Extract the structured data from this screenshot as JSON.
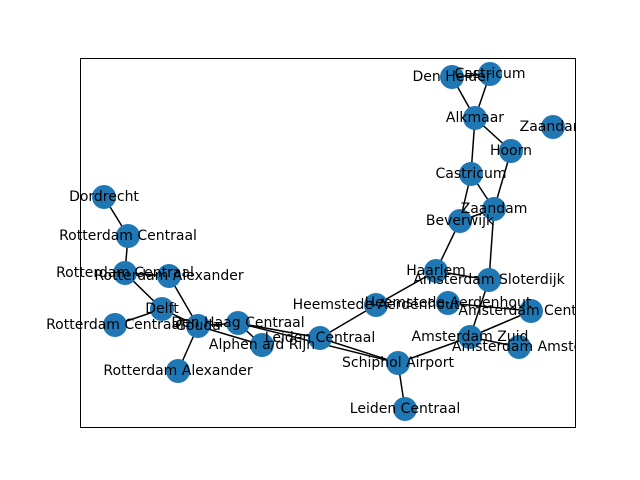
{
  "colors": {
    "node": "#1f77b4",
    "edge": "#000000",
    "background": "#ffffff"
  },
  "nodes": [
    {
      "id": "n0",
      "label": "Den Helder"
    },
    {
      "id": "n1",
      "label": "Castricum"
    },
    {
      "id": "n2",
      "label": "Alkmaar"
    },
    {
      "id": "n3",
      "label": "Zaandam"
    },
    {
      "id": "n4",
      "label": "Hoorn"
    },
    {
      "id": "n5",
      "label": "Castricum"
    },
    {
      "id": "n6",
      "label": "Zaandam"
    },
    {
      "id": "n7",
      "label": "Beverwijk"
    },
    {
      "id": "n8",
      "label": "Haarlem"
    },
    {
      "id": "n9",
      "label": "Amsterdam Sloterdijk"
    },
    {
      "id": "n10",
      "label": "Heemstede-Aerdenhout"
    },
    {
      "id": "n11",
      "label": "Heemstede-Aerdenhout"
    },
    {
      "id": "n12",
      "label": "Amsterdam Centraal"
    },
    {
      "id": "n13",
      "label": "Amsterdam Zuid"
    },
    {
      "id": "n14",
      "label": "Amsterdam Amstel"
    },
    {
      "id": "n15",
      "label": "Leiden Centraal"
    },
    {
      "id": "n16",
      "label": "Schiphol Airport"
    },
    {
      "id": "n17",
      "label": "Leiden Centraal"
    },
    {
      "id": "n18",
      "label": "Dordrecht"
    },
    {
      "id": "n19",
      "label": "Rotterdam Centraal"
    },
    {
      "id": "n20",
      "label": "Rotterdam Centraal"
    },
    {
      "id": "n21",
      "label": "Rotterdam Alexander"
    },
    {
      "id": "n22",
      "label": "Delft"
    },
    {
      "id": "n23",
      "label": "Rotterdam Centraal"
    },
    {
      "id": "n24",
      "label": "Gouda"
    },
    {
      "id": "n25",
      "label": "Den Haag Centraal"
    },
    {
      "id": "n26",
      "label": "Alphen a/d Rijn"
    },
    {
      "id": "n27",
      "label": "Rotterdam Alexander"
    }
  ],
  "edges": [
    [
      "n0",
      "n1"
    ],
    [
      "n0",
      "n2"
    ],
    [
      "n1",
      "n2"
    ],
    [
      "n2",
      "n4"
    ],
    [
      "n2",
      "n5"
    ],
    [
      "n4",
      "n6"
    ],
    [
      "n5",
      "n6"
    ],
    [
      "n5",
      "n7"
    ],
    [
      "n6",
      "n7"
    ],
    [
      "n6",
      "n9"
    ],
    [
      "n7",
      "n8"
    ],
    [
      "n8",
      "n9"
    ],
    [
      "n8",
      "n10"
    ],
    [
      "n9",
      "n13"
    ],
    [
      "n11",
      "n12"
    ],
    [
      "n12",
      "n13"
    ],
    [
      "n13",
      "n14"
    ],
    [
      "n13",
      "n16"
    ],
    [
      "n10",
      "n15"
    ],
    [
      "n15",
      "n16"
    ],
    [
      "n16",
      "n17"
    ],
    [
      "n15",
      "n25"
    ],
    [
      "n16",
      "n25"
    ],
    [
      "n18",
      "n19"
    ],
    [
      "n19",
      "n20"
    ],
    [
      "n20",
      "n21"
    ],
    [
      "n20",
      "n22"
    ],
    [
      "n21",
      "n24"
    ],
    [
      "n22",
      "n23"
    ],
    [
      "n22",
      "n24"
    ],
    [
      "n24",
      "n25"
    ],
    [
      "n24",
      "n26"
    ],
    [
      "n24",
      "n27"
    ],
    [
      "n25",
      "n26"
    ]
  ]
}
